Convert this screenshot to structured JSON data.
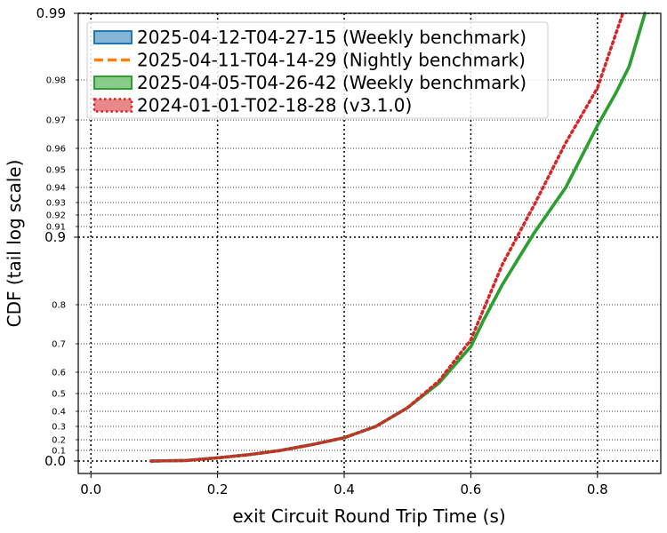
{
  "chart_data": {
    "type": "line",
    "title": "",
    "xlabel": "exit Circuit Round Trip Time (s)",
    "ylabel": "CDF (tail log scale)",
    "xlim": [
      -0.02,
      0.9
    ],
    "x_ticks": [
      "0.0",
      "0.2",
      "0.4",
      "0.6",
      "0.8"
    ],
    "y_scale": "tail-log (logit-like)",
    "y_major_ticks": [
      "0.0",
      "0.9",
      "0.99"
    ],
    "y_minor_ticks": [
      "0.1",
      "0.2",
      "0.3",
      "0.4",
      "0.5",
      "0.6",
      "0.7",
      "0.8",
      "0.91",
      "0.92",
      "0.93",
      "0.94",
      "0.95",
      "0.96",
      "0.97",
      "0.98"
    ],
    "grid": true,
    "legend_position": "top-left",
    "series": [
      {
        "name": "2025-04-12-T04-27-15 (Weekly benchmark)",
        "color": "#1f77b4",
        "style": "solid",
        "points": [
          [
            0.095,
            0
          ],
          [
            0.15,
            0.005
          ],
          [
            0.2,
            0.03
          ],
          [
            0.25,
            0.06
          ],
          [
            0.3,
            0.1
          ],
          [
            0.35,
            0.155
          ],
          [
            0.4,
            0.215
          ],
          [
            0.45,
            0.3
          ],
          [
            0.5,
            0.42
          ],
          [
            0.55,
            0.55
          ],
          [
            0.6,
            0.69
          ],
          [
            0.62,
            0.76
          ],
          [
            0.65,
            0.83
          ],
          [
            0.7,
            0.904
          ],
          [
            0.75,
            0.94
          ],
          [
            0.8,
            0.968
          ],
          [
            0.83,
            0.977
          ],
          [
            0.85,
            0.982
          ],
          [
            0.875,
            0.99
          ]
        ]
      },
      {
        "name": "2025-04-11-T04-14-29 (Nightly benchmark)",
        "color": "#ff7f0e",
        "style": "dashed",
        "points": [
          [
            0.095,
            0
          ],
          [
            0.15,
            0.005
          ],
          [
            0.2,
            0.03
          ],
          [
            0.25,
            0.06
          ],
          [
            0.3,
            0.1
          ],
          [
            0.35,
            0.155
          ],
          [
            0.4,
            0.215
          ],
          [
            0.45,
            0.3
          ],
          [
            0.5,
            0.42
          ],
          [
            0.55,
            0.55
          ],
          [
            0.6,
            0.69
          ],
          [
            0.62,
            0.76
          ],
          [
            0.65,
            0.83
          ],
          [
            0.7,
            0.904
          ],
          [
            0.75,
            0.94
          ],
          [
            0.8,
            0.968
          ],
          [
            0.83,
            0.977
          ],
          [
            0.85,
            0.982
          ],
          [
            0.875,
            0.99
          ]
        ]
      },
      {
        "name": "2025-04-05-T04-26-42 (Weekly benchmark)",
        "color": "#2ca02c",
        "style": "solid",
        "points": [
          [
            0.095,
            0
          ],
          [
            0.15,
            0.005
          ],
          [
            0.2,
            0.03
          ],
          [
            0.25,
            0.06
          ],
          [
            0.3,
            0.1
          ],
          [
            0.35,
            0.155
          ],
          [
            0.4,
            0.215
          ],
          [
            0.45,
            0.3
          ],
          [
            0.5,
            0.42
          ],
          [
            0.55,
            0.55
          ],
          [
            0.6,
            0.69
          ],
          [
            0.62,
            0.76
          ],
          [
            0.65,
            0.83
          ],
          [
            0.7,
            0.904
          ],
          [
            0.75,
            0.94
          ],
          [
            0.8,
            0.968
          ],
          [
            0.83,
            0.977
          ],
          [
            0.85,
            0.982
          ],
          [
            0.875,
            0.99
          ]
        ]
      },
      {
        "name": "2024-01-01-T02-18-28 (v3.1.0)",
        "color": "#d62728",
        "style": "dotted",
        "points": [
          [
            0.095,
            0
          ],
          [
            0.15,
            0.005
          ],
          [
            0.2,
            0.03
          ],
          [
            0.25,
            0.06
          ],
          [
            0.3,
            0.1
          ],
          [
            0.35,
            0.155
          ],
          [
            0.4,
            0.215
          ],
          [
            0.45,
            0.3
          ],
          [
            0.5,
            0.42
          ],
          [
            0.55,
            0.56
          ],
          [
            0.6,
            0.71
          ],
          [
            0.65,
            0.86
          ],
          [
            0.7,
            0.928
          ],
          [
            0.75,
            0.962
          ],
          [
            0.8,
            0.978
          ],
          [
            0.84,
            0.99
          ]
        ]
      }
    ]
  }
}
